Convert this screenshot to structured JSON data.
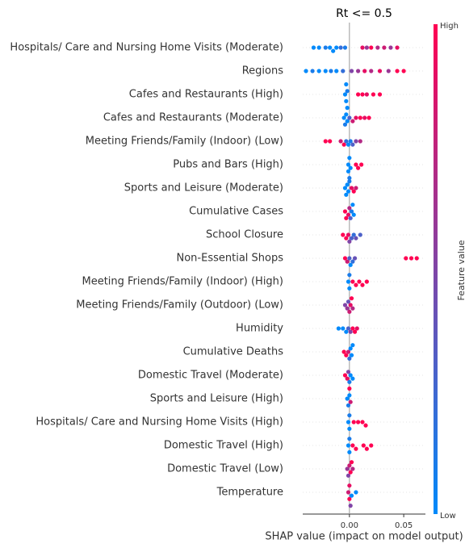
{
  "chart_data": {
    "type": "beeswarm",
    "title": "Rt <= 0.5",
    "xlabel": "SHAP value (impact on model output)",
    "colorbar_label": "Feature value",
    "colorbar_high": "High",
    "colorbar_low": "Low",
    "low_color": "#008afb",
    "high_color": "#ff0052",
    "xlim": [
      -0.043,
      0.07
    ],
    "xticks": [
      {
        "value": 0,
        "label": "0.00"
      },
      {
        "value": 0.05,
        "label": "0.05"
      }
    ],
    "series": [
      {
        "name": "Hospitals/ Care and Nursing Home Visits (Moderate)",
        "values": [
          -0.033,
          -0.028,
          -0.022,
          -0.018,
          -0.015,
          -0.012,
          -0.008,
          -0.004,
          0.012,
          0.016,
          0.02,
          0.026,
          0.032,
          0.038,
          0.044
        ],
        "feature_values": [
          0,
          0,
          0.1,
          0,
          0,
          0,
          0.2,
          0.1,
          0.9,
          0.6,
          1,
          0.7,
          0.8,
          0.6,
          0.9
        ]
      },
      {
        "name": "Regions",
        "values": [
          -0.04,
          -0.034,
          -0.028,
          -0.022,
          -0.017,
          -0.012,
          -0.006,
          0.002,
          0.008,
          0.014,
          0.02,
          0.028,
          0.036,
          0.044,
          0.05
        ],
        "feature_values": [
          0,
          0.1,
          0,
          0,
          0.1,
          0,
          0.2,
          0.5,
          0.6,
          0.9,
          0.7,
          0.9,
          0.6,
          1,
          1
        ]
      },
      {
        "name": "Cafes and Restaurants (High)",
        "values": [
          -0.004,
          -0.003,
          -0.002,
          -0.003,
          -0.002,
          0.008,
          0.012,
          0.016,
          0.022,
          0.028
        ],
        "feature_values": [
          0,
          0,
          0.1,
          0,
          0,
          1,
          1,
          0.9,
          1,
          1
        ]
      },
      {
        "name": "Cafes and Restaurants (Moderate)",
        "values": [
          -0.005,
          -0.004,
          -0.003,
          -0.002,
          0,
          0.003,
          0.006,
          0.01,
          0.014,
          0.018
        ],
        "feature_values": [
          0,
          0.1,
          0,
          0,
          0.3,
          0.8,
          0.9,
          1,
          0.9,
          1
        ]
      },
      {
        "name": "Meeting Friends/Family (Indoor) (Low)",
        "values": [
          -0.022,
          -0.018,
          -0.008,
          -0.005,
          -0.003,
          -0.001,
          0.001,
          0.003,
          0.006,
          0.01
        ],
        "feature_values": [
          1,
          1,
          0.8,
          1,
          0.2,
          0,
          0.1,
          0.3,
          0.5,
          0.7
        ]
      },
      {
        "name": "Pubs and Bars (High)",
        "values": [
          -0.001,
          -0.001,
          0,
          0,
          0.001,
          0.006,
          0.008,
          0.011
        ],
        "feature_values": [
          0,
          0,
          0,
          0.1,
          0,
          1,
          1,
          1
        ]
      },
      {
        "name": "Sports and Leisure (Moderate)",
        "values": [
          -0.004,
          -0.003,
          -0.002,
          -0.001,
          0,
          0.002,
          0.004,
          0.006
        ],
        "feature_values": [
          0,
          0,
          0,
          0,
          0.1,
          0.9,
          1,
          0.8
        ]
      },
      {
        "name": "Cumulative Cases",
        "values": [
          -0.004,
          -0.003,
          -0.001,
          0,
          0.001,
          0.002,
          0.003,
          0.004
        ],
        "feature_values": [
          1,
          1,
          0.9,
          0.7,
          0.3,
          0.1,
          0,
          0
        ]
      },
      {
        "name": "School Closure",
        "values": [
          -0.006,
          -0.003,
          -0.001,
          0,
          0.002,
          0.004,
          0.006,
          0.01
        ],
        "feature_values": [
          1,
          1,
          0.9,
          0.5,
          0.3,
          0.2,
          0.4,
          0.3
        ]
      },
      {
        "name": "Non-Essential Shops",
        "values": [
          -0.004,
          -0.002,
          0,
          0.001,
          0.003,
          0.005,
          0.052,
          0.057,
          0.062
        ],
        "feature_values": [
          1,
          0.8,
          0.3,
          0,
          0.2,
          0.4,
          1,
          1,
          1
        ]
      },
      {
        "name": "Meeting Friends/Family (Indoor) (High)",
        "values": [
          -0.001,
          0,
          0,
          0.003,
          0.006,
          0.009,
          0.012,
          0.016
        ],
        "feature_values": [
          0,
          0,
          0.1,
          1,
          1,
          1,
          1,
          1
        ]
      },
      {
        "name": "Meeting Friends/Family (Outdoor) (Low)",
        "values": [
          -0.004,
          -0.002,
          -0.001,
          0,
          0.001,
          0.002,
          0.003
        ],
        "feature_values": [
          0.5,
          0.6,
          0.4,
          0.8,
          0.9,
          1,
          0.7
        ]
      },
      {
        "name": "Humidity",
        "values": [
          -0.01,
          -0.006,
          -0.003,
          -0.001,
          0.001,
          0.003,
          0.005,
          0.007
        ],
        "feature_values": [
          0,
          0,
          0,
          0.3,
          0.5,
          1,
          1,
          0.9
        ]
      },
      {
        "name": "Cumulative Deaths",
        "values": [
          -0.005,
          -0.003,
          -0.001,
          0,
          0.001,
          0.002,
          0.003
        ],
        "feature_values": [
          1,
          1,
          0.8,
          0.2,
          0,
          0,
          0
        ]
      },
      {
        "name": "Domestic Travel (Moderate)",
        "values": [
          -0.004,
          -0.002,
          -0.001,
          0,
          0.001,
          0.003
        ],
        "feature_values": [
          1,
          0.9,
          0.5,
          0.1,
          0,
          0
        ]
      },
      {
        "name": "Sports and Leisure (High)",
        "values": [
          -0.002,
          -0.001,
          0,
          0,
          0.001
        ],
        "feature_values": [
          0,
          0.1,
          0,
          1,
          0.8
        ]
      },
      {
        "name": "Hospitals/ Care and Nursing Home Visits (High)",
        "values": [
          -0.001,
          0,
          0,
          0.004,
          0.008,
          0.012,
          0.015
        ],
        "feature_values": [
          0,
          0,
          0.1,
          1,
          1,
          1,
          1
        ]
      },
      {
        "name": "Domestic Travel (High)",
        "values": [
          -0.001,
          0,
          0,
          0.003,
          0.006,
          0.013,
          0.016,
          0.02
        ],
        "feature_values": [
          0,
          0,
          0.1,
          1,
          1,
          1,
          1,
          1
        ]
      },
      {
        "name": "Domestic Travel (Low)",
        "values": [
          -0.002,
          -0.001,
          0,
          0.001,
          0.002,
          0.003
        ],
        "feature_values": [
          0.6,
          0.5,
          0.8,
          1,
          1,
          0.7
        ]
      },
      {
        "name": "Temperature",
        "values": [
          -0.001,
          0,
          0,
          0.001,
          0.002,
          0.006
        ],
        "feature_values": [
          0.8,
          1,
          0.9,
          0.5,
          0,
          0
        ]
      }
    ]
  }
}
